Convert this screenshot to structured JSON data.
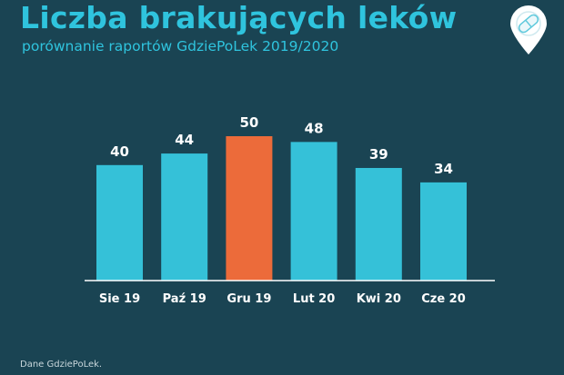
{
  "title": "Liczba brakujących leków",
  "subtitle": "porównanie raportów GdziePoLek 2019/2020",
  "footer": "Dane GdziePoLek.",
  "colors": {
    "background": "#1a4453",
    "bar": "#35c1d8",
    "highlight": "#ec6b3a",
    "title": "#2fc4de"
  },
  "logo_icon": "pill-pin-icon",
  "chart_data": {
    "type": "bar",
    "title": "Liczba brakujących leków",
    "subtitle": "porównanie raportów GdziePoLek 2019/2020",
    "categories": [
      "Sie 19",
      "Paź 19",
      "Gru 19",
      "Lut 20",
      "Kwi 20",
      "Cze 20"
    ],
    "values": [
      40,
      44,
      50,
      48,
      39,
      34
    ],
    "highlight_index": 2,
    "xlabel": "",
    "ylabel": "",
    "ylim": [
      0,
      50
    ],
    "grid": false,
    "legend": "none",
    "data_labels": true
  }
}
